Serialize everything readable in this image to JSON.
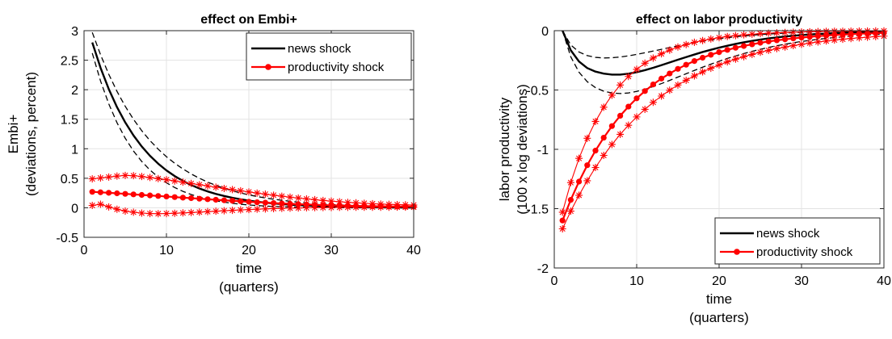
{
  "chart_data": [
    {
      "type": "line",
      "title": "effect on Embi+",
      "xlabel": [
        "time",
        "(quarters)"
      ],
      "ylabel": [
        "Embi+",
        "(deviations, percent)"
      ],
      "xlim": [
        0,
        40
      ],
      "ylim": [
        -0.5,
        3
      ],
      "xticks": [
        "0",
        "10",
        "20",
        "30",
        "40"
      ],
      "yticks": [
        "-0.5",
        "0",
        "0.5",
        "1",
        "1.5",
        "2",
        "2.5",
        "3"
      ],
      "grid": true,
      "legend": {
        "placement": "top-right",
        "entries": [
          "news shock",
          "productivity shock"
        ]
      },
      "x": [
        1,
        2,
        3,
        4,
        5,
        6,
        7,
        8,
        9,
        10,
        11,
        12,
        13,
        14,
        15,
        16,
        17,
        18,
        19,
        20,
        21,
        22,
        23,
        24,
        25,
        26,
        27,
        28,
        29,
        30,
        31,
        32,
        33,
        34,
        35,
        36,
        37,
        38,
        39,
        40
      ],
      "series": [
        {
          "name": "news shock",
          "style": "solid",
          "color": "#000000",
          "values": [
            2.8,
            2.372,
            2.011,
            1.705,
            1.446,
            1.226,
            1.039,
            0.881,
            0.747,
            0.633,
            0.537,
            0.455,
            0.386,
            0.327,
            0.277,
            0.235,
            0.2,
            0.169,
            0.143,
            0.122,
            0.103,
            0.087,
            0.074,
            0.063,
            0.053,
            0.045,
            0.038,
            0.033,
            0.028,
            0.023,
            0.02,
            0.017,
            0.014,
            0.012,
            0.01,
            0.009,
            0.007,
            0.006,
            0.005,
            0.004
          ]
        },
        {
          "name": "news shock upper band",
          "style": "dashed",
          "color": "#000000",
          "values": [
            2.97,
            2.594,
            2.262,
            1.972,
            1.719,
            1.499,
            1.306,
            1.139,
            0.993,
            0.865,
            0.754,
            0.658,
            0.573,
            0.5,
            0.435,
            0.38,
            0.331,
            0.288,
            0.251,
            0.219,
            0.191,
            0.166,
            0.145,
            0.127,
            0.11,
            0.096,
            0.084,
            0.073,
            0.064,
            0.056,
            0.048,
            0.042,
            0.037,
            0.032,
            0.028,
            0.025,
            0.021,
            0.019,
            0.016,
            0.014
          ]
        },
        {
          "name": "news shock lower band",
          "style": "dashed",
          "color": "#000000",
          "values": [
            2.62,
            2.149,
            1.761,
            1.441,
            1.178,
            0.962,
            0.785,
            0.64,
            0.52,
            0.423,
            0.343,
            0.278,
            0.225,
            0.182,
            0.147,
            0.118,
            0.095,
            0.076,
            0.06,
            0.048,
            0.038,
            0.03,
            0.023,
            0.018,
            0.014,
            0.01,
            0.007,
            0.005,
            0.004,
            0.002,
            0.001,
            0,
            0,
            -0.001,
            -0.001,
            -0.001,
            -0.001,
            -0.001,
            -0.001,
            -0.001
          ]
        },
        {
          "name": "productivity shock",
          "style": "solid-dot",
          "color": "#ff0000",
          "values": [
            0.27,
            0.262,
            0.254,
            0.245,
            0.236,
            0.227,
            0.218,
            0.209,
            0.2,
            0.191,
            0.181,
            0.172,
            0.163,
            0.154,
            0.145,
            0.136,
            0.127,
            0.119,
            0.11,
            0.102,
            0.094,
            0.087,
            0.08,
            0.073,
            0.067,
            0.061,
            0.056,
            0.051,
            0.046,
            0.042,
            0.038,
            0.035,
            0.032,
            0.029,
            0.027,
            0.025,
            0.023,
            0.022,
            0.021,
            0.02
          ]
        },
        {
          "name": "productivity shock upper band",
          "style": "star",
          "color": "#ff0000",
          "values": [
            0.49,
            0.505,
            0.521,
            0.537,
            0.548,
            0.544,
            0.53,
            0.513,
            0.494,
            0.475,
            0.454,
            0.434,
            0.412,
            0.391,
            0.37,
            0.349,
            0.328,
            0.308,
            0.288,
            0.268,
            0.249,
            0.231,
            0.213,
            0.196,
            0.18,
            0.165,
            0.15,
            0.137,
            0.124,
            0.113,
            0.102,
            0.092,
            0.084,
            0.076,
            0.069,
            0.063,
            0.058,
            0.054,
            0.05,
            0.047
          ]
        },
        {
          "name": "productivity shock lower band",
          "style": "star",
          "color": "#ff0000",
          "values": [
            0.04,
            0.06,
            0.015,
            -0.025,
            -0.055,
            -0.075,
            -0.09,
            -0.098,
            -0.1,
            -0.098,
            -0.093,
            -0.087,
            -0.08,
            -0.073,
            -0.065,
            -0.058,
            -0.05,
            -0.043,
            -0.036,
            -0.03,
            -0.024,
            -0.019,
            -0.014,
            -0.01,
            -0.006,
            -0.003,
            0,
            0.002,
            0.004,
            0.005,
            0.007,
            0.008,
            0.009,
            0.009,
            0.01,
            0.01,
            0.01,
            0.011,
            0.011,
            0.011
          ]
        }
      ]
    },
    {
      "type": "line",
      "title": "effect on labor productivity",
      "xlabel": [
        "time",
        "(quarters)"
      ],
      "ylabel": [
        "labor productivity",
        "(100 x log deviations)"
      ],
      "xlim": [
        0,
        40
      ],
      "ylim": [
        -2,
        0
      ],
      "xticks": [
        "0",
        "10",
        "20",
        "30",
        "40"
      ],
      "yticks": [
        "-2",
        "-1.5",
        "-1",
        "-0.5",
        "0"
      ],
      "grid": true,
      "legend": {
        "placement": "bottom-right",
        "entries": [
          "news shock",
          "productivity shock"
        ]
      },
      "x": [
        1,
        2,
        3,
        4,
        5,
        6,
        7,
        8,
        9,
        10,
        11,
        12,
        13,
        14,
        15,
        16,
        17,
        18,
        19,
        20,
        21,
        22,
        23,
        24,
        25,
        26,
        27,
        28,
        29,
        30,
        31,
        32,
        33,
        34,
        35,
        36,
        37,
        38,
        39,
        40
      ],
      "series": [
        {
          "name": "news shock",
          "style": "solid",
          "color": "#000000",
          "values": [
            0,
            -0.165,
            -0.26,
            -0.315,
            -0.345,
            -0.362,
            -0.37,
            -0.37,
            -0.363,
            -0.35,
            -0.333,
            -0.313,
            -0.291,
            -0.268,
            -0.245,
            -0.223,
            -0.201,
            -0.18,
            -0.161,
            -0.143,
            -0.127,
            -0.112,
            -0.098,
            -0.086,
            -0.075,
            -0.065,
            -0.057,
            -0.049,
            -0.043,
            -0.037,
            -0.032,
            -0.028,
            -0.024,
            -0.021,
            -0.018,
            -0.015,
            -0.013,
            -0.011,
            -0.01,
            -0.008
          ]
        },
        {
          "name": "news shock upper band",
          "style": "dashed",
          "color": "#000000",
          "values": [
            0,
            -0.12,
            -0.18,
            -0.21,
            -0.225,
            -0.23,
            -0.228,
            -0.222,
            -0.212,
            -0.2,
            -0.186,
            -0.172,
            -0.157,
            -0.142,
            -0.128,
            -0.114,
            -0.101,
            -0.089,
            -0.078,
            -0.068,
            -0.059,
            -0.051,
            -0.044,
            -0.038,
            -0.032,
            -0.028,
            -0.024,
            -0.02,
            -0.017,
            -0.014,
            -0.012,
            -0.01,
            -0.008,
            -0.007,
            -0.006,
            -0.005,
            -0.004,
            -0.003,
            -0.003,
            -0.002
          ]
        },
        {
          "name": "news shock lower band",
          "style": "dashed",
          "color": "#000000",
          "values": [
            0,
            -0.22,
            -0.35,
            -0.43,
            -0.48,
            -0.51,
            -0.525,
            -0.53,
            -0.525,
            -0.512,
            -0.494,
            -0.471,
            -0.446,
            -0.419,
            -0.391,
            -0.363,
            -0.335,
            -0.308,
            -0.282,
            -0.258,
            -0.234,
            -0.213,
            -0.193,
            -0.174,
            -0.157,
            -0.141,
            -0.127,
            -0.114,
            -0.102,
            -0.091,
            -0.082,
            -0.073,
            -0.065,
            -0.058,
            -0.052,
            -0.046,
            -0.041,
            -0.037,
            -0.033,
            -0.029
          ]
        },
        {
          "name": "productivity shock",
          "style": "solid-dot",
          "color": "#ff0000",
          "values": [
            -1.6,
            -1.426,
            -1.272,
            -1.134,
            -1.011,
            -0.902,
            -0.804,
            -0.717,
            -0.64,
            -0.57,
            -0.509,
            -0.453,
            -0.404,
            -0.361,
            -0.322,
            -0.287,
            -0.256,
            -0.228,
            -0.203,
            -0.181,
            -0.162,
            -0.144,
            -0.129,
            -0.115,
            -0.102,
            -0.091,
            -0.081,
            -0.073,
            -0.065,
            -0.058,
            -0.052,
            -0.046,
            -0.041,
            -0.036,
            -0.033,
            -0.029,
            -0.026,
            -0.023,
            -0.021,
            -0.018
          ]
        },
        {
          "name": "productivity shock upper band",
          "style": "star",
          "color": "#ff0000",
          "values": [
            -1.53,
            -1.28,
            -1.076,
            -0.907,
            -0.765,
            -0.645,
            -0.544,
            -0.458,
            -0.386,
            -0.326,
            -0.274,
            -0.231,
            -0.195,
            -0.164,
            -0.138,
            -0.117,
            -0.098,
            -0.083,
            -0.07,
            -0.059,
            -0.049,
            -0.042,
            -0.035,
            -0.03,
            -0.025,
            -0.021,
            -0.018,
            -0.015,
            -0.013,
            -0.011,
            -0.009,
            -0.008,
            -0.006,
            -0.005,
            -0.005,
            -0.004,
            -0.003,
            -0.003,
            -0.002,
            -0.002
          ]
        },
        {
          "name": "productivity shock lower band",
          "style": "star",
          "color": "#ff0000",
          "values": [
            -1.67,
            -1.521,
            -1.387,
            -1.265,
            -1.153,
            -1.051,
            -0.959,
            -0.874,
            -0.797,
            -0.727,
            -0.663,
            -0.604,
            -0.551,
            -0.502,
            -0.458,
            -0.418,
            -0.381,
            -0.347,
            -0.317,
            -0.289,
            -0.263,
            -0.24,
            -0.219,
            -0.2,
            -0.182,
            -0.166,
            -0.151,
            -0.138,
            -0.126,
            -0.115,
            -0.104,
            -0.095,
            -0.087,
            -0.079,
            -0.072,
            -0.066,
            -0.06,
            -0.055,
            -0.05,
            -0.046
          ]
        }
      ]
    }
  ]
}
